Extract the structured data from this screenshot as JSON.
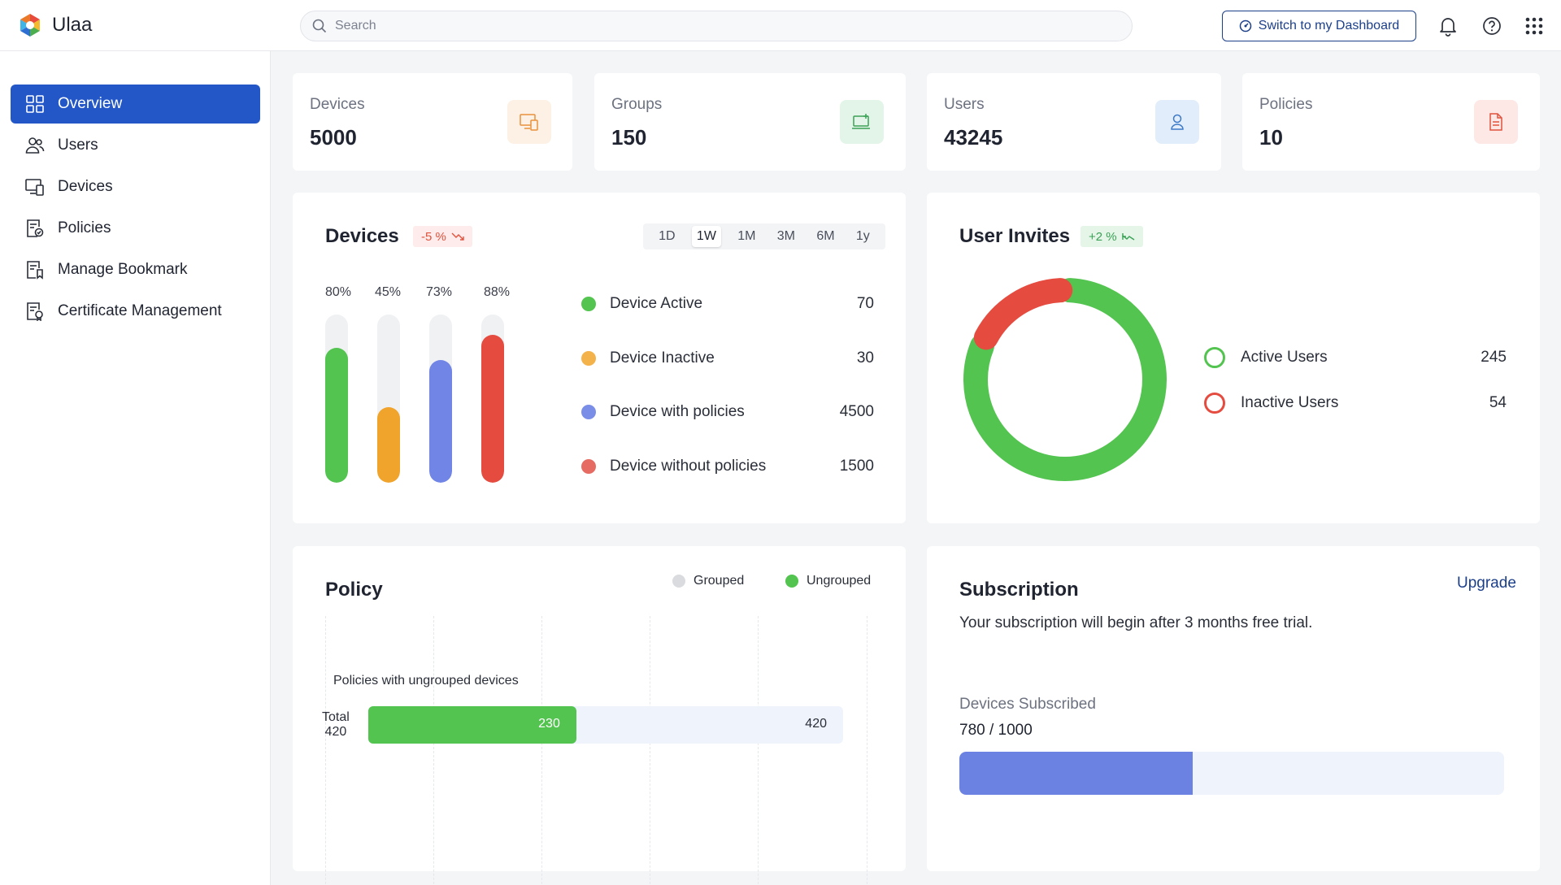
{
  "app": {
    "name": "Ulaa"
  },
  "header": {
    "search_placeholder": "Search",
    "switch_label": "Switch to my Dashboard",
    "icons": [
      "bell-icon",
      "help-icon",
      "apps-grid-icon"
    ]
  },
  "sidebar": {
    "items": [
      {
        "label": "Overview",
        "icon": "grid-icon",
        "active": true
      },
      {
        "label": "Users",
        "icon": "users-icon",
        "active": false
      },
      {
        "label": "Devices",
        "icon": "devices-icon",
        "active": false
      },
      {
        "label": "Policies",
        "icon": "policy-icon",
        "active": false
      },
      {
        "label": "Manage Bookmark",
        "icon": "bookmark-doc-icon",
        "active": false
      },
      {
        "label": "Certificate Management",
        "icon": "certificate-icon",
        "active": false
      }
    ]
  },
  "stats": [
    {
      "label": "Devices",
      "value": "5000",
      "icon": "devices-icon",
      "icon_color": "#e8913a",
      "icon_bg": "#fdf1e6"
    },
    {
      "label": "Groups",
      "value": "150",
      "icon": "group-device-icon",
      "icon_color": "#3aa156",
      "icon_bg": "#e3f5e8"
    },
    {
      "label": "Users",
      "value": "43245",
      "icon": "user-icon",
      "icon_color": "#3b79c9",
      "icon_bg": "#e1edfa"
    },
    {
      "label": "Policies",
      "value": "10",
      "icon": "document-icon",
      "icon_color": "#e0533f",
      "icon_bg": "#fde8e5"
    }
  ],
  "devices_card": {
    "title": "Devices",
    "badge": "-5 %",
    "badge_color": "#e0533f",
    "ranges": [
      "1D",
      "1W",
      "1M",
      "3M",
      "6M",
      "1y"
    ],
    "active_range": "1W",
    "bars": [
      {
        "pct_label": "80%",
        "value": 0.8,
        "color": "#52c44f"
      },
      {
        "pct_label": "45%",
        "value": 0.45,
        "color": "#f0a42c"
      },
      {
        "pct_label": "73%",
        "value": 0.73,
        "color": "#7085e6"
      },
      {
        "pct_label": "88%",
        "value": 0.88,
        "color": "#e54b3f"
      }
    ],
    "legend": [
      {
        "label": "Device Active",
        "value": "70",
        "color": "#52c44f"
      },
      {
        "label": "Device  Inactive",
        "value": "30",
        "color": "#f4b24a"
      },
      {
        "label": "Device  with policies",
        "value": "4500",
        "color": "#7a8ee8"
      },
      {
        "label": "Device  without policies",
        "value": "1500",
        "color": "#e66b62"
      }
    ]
  },
  "invites_card": {
    "title": "User Invites",
    "badge": "+2 %",
    "badge_color": "#3aa156",
    "items": [
      {
        "label": "Active Users",
        "value": "245",
        "count": 245,
        "color": "#52c44f"
      },
      {
        "label": "Inactive Users",
        "value": "54",
        "count": 54,
        "color": "#e54b3f"
      }
    ]
  },
  "policy_card": {
    "title": "Policy",
    "legend": [
      {
        "label": "Grouped",
        "color": "#d9dbdf"
      },
      {
        "label": "Ungrouped",
        "color": "#52c44f"
      }
    ],
    "caption": "Policies with ungrouped devices",
    "total_label": "Total",
    "total_value": "420",
    "ungrouped_value": "230",
    "bar_total_value": "420",
    "ungrouped": 230,
    "total": 420
  },
  "subscription_card": {
    "title": "Subscription",
    "upgrade_label": "Upgrade",
    "description": "Your subscription will begin after 3 months free trial.",
    "devices_label": "Devices Subscribed",
    "devices_value": "780 / 1000",
    "used": 780,
    "limit": 1000
  }
}
